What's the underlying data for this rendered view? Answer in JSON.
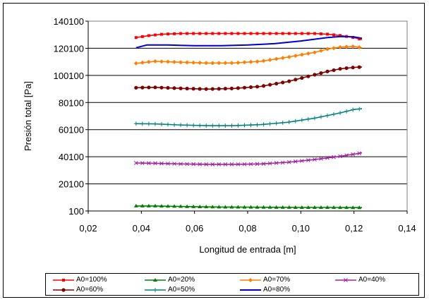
{
  "chart_data": {
    "type": "line",
    "title": "",
    "xlabel": "Longitud de entrada [m]",
    "ylabel": "Presión total [Pa]",
    "xlim": [
      0.02,
      0.14
    ],
    "ylim": [
      100,
      140100
    ],
    "x_ticks": [
      "0,02",
      "0,04",
      "0,06",
      "0,08",
      "0,10",
      "0,12",
      "0,14"
    ],
    "y_ticks": [
      "100",
      "20100",
      "40100",
      "60100",
      "80100",
      "100100",
      "120100",
      "140100"
    ],
    "grid": "horizontal",
    "legend_position": "bottom",
    "series": [
      {
        "name": "A0=100%",
        "color": "#ff0000",
        "marker": "square",
        "points": [
          [
            0.038,
            128000
          ],
          [
            0.043,
            129500
          ],
          [
            0.048,
            130500
          ],
          [
            0.055,
            131000
          ],
          [
            0.065,
            131000
          ],
          [
            0.075,
            131000
          ],
          [
            0.085,
            131000
          ],
          [
            0.095,
            131000
          ],
          [
            0.105,
            131000
          ],
          [
            0.11,
            130500
          ],
          [
            0.115,
            129500
          ],
          [
            0.12,
            128000
          ],
          [
            0.123,
            126500
          ]
        ]
      },
      {
        "name": "A0=20%",
        "color": "#008000",
        "marker": "triangle",
        "points": [
          [
            0.038,
            3800
          ],
          [
            0.045,
            3800
          ],
          [
            0.05,
            3600
          ],
          [
            0.06,
            3300
          ],
          [
            0.07,
            3000
          ],
          [
            0.08,
            2900
          ],
          [
            0.09,
            2800
          ],
          [
            0.1,
            2700
          ],
          [
            0.11,
            2700
          ],
          [
            0.12,
            2600
          ],
          [
            0.123,
            2600
          ]
        ]
      },
      {
        "name": "A0=70%",
        "color": "#ff8000",
        "marker": "diamond",
        "points": [
          [
            0.038,
            109000
          ],
          [
            0.045,
            110500
          ],
          [
            0.055,
            109800
          ],
          [
            0.065,
            109200
          ],
          [
            0.075,
            109300
          ],
          [
            0.085,
            110500
          ],
          [
            0.095,
            113500
          ],
          [
            0.105,
            117000
          ],
          [
            0.11,
            119500
          ],
          [
            0.115,
            121000
          ],
          [
            0.12,
            121500
          ],
          [
            0.123,
            120500
          ]
        ]
      },
      {
        "name": "A0=40%",
        "color": "#a020a0",
        "marker": "x",
        "points": [
          [
            0.038,
            35500
          ],
          [
            0.045,
            35300
          ],
          [
            0.055,
            34800
          ],
          [
            0.065,
            34500
          ],
          [
            0.075,
            34500
          ],
          [
            0.085,
            34800
          ],
          [
            0.095,
            36000
          ],
          [
            0.105,
            38000
          ],
          [
            0.115,
            40500
          ],
          [
            0.12,
            42000
          ],
          [
            0.123,
            43000
          ]
        ]
      },
      {
        "name": "A0=60%",
        "color": "#800000",
        "marker": "circle",
        "points": [
          [
            0.038,
            91000
          ],
          [
            0.045,
            91300
          ],
          [
            0.055,
            90500
          ],
          [
            0.065,
            90000
          ],
          [
            0.075,
            90500
          ],
          [
            0.085,
            92000
          ],
          [
            0.095,
            95500
          ],
          [
            0.105,
            100500
          ],
          [
            0.11,
            103000
          ],
          [
            0.115,
            105000
          ],
          [
            0.12,
            106000
          ],
          [
            0.123,
            106300
          ]
        ]
      },
      {
        "name": "A0=50%",
        "color": "#008080",
        "marker": "plus",
        "points": [
          [
            0.038,
            64500
          ],
          [
            0.045,
            64300
          ],
          [
            0.055,
            63500
          ],
          [
            0.065,
            63000
          ],
          [
            0.075,
            63000
          ],
          [
            0.085,
            63800
          ],
          [
            0.095,
            65500
          ],
          [
            0.105,
            68500
          ],
          [
            0.115,
            72500
          ],
          [
            0.12,
            75000
          ],
          [
            0.123,
            75500
          ]
        ]
      },
      {
        "name": "A0=80%",
        "color": "#0000cc",
        "marker": "none",
        "points": [
          [
            0.038,
            120500
          ],
          [
            0.042,
            122500
          ],
          [
            0.05,
            122500
          ],
          [
            0.06,
            122000
          ],
          [
            0.07,
            122000
          ],
          [
            0.08,
            122500
          ],
          [
            0.09,
            123500
          ],
          [
            0.1,
            125500
          ],
          [
            0.11,
            128000
          ],
          [
            0.115,
            128800
          ],
          [
            0.12,
            128500
          ],
          [
            0.123,
            127500
          ]
        ]
      }
    ]
  },
  "legend": {
    "items": [
      "A0=100%",
      "A0=20%",
      "A0=70%",
      "A0=40%",
      "A0=60%",
      "A0=50%",
      "A0=80%"
    ]
  }
}
